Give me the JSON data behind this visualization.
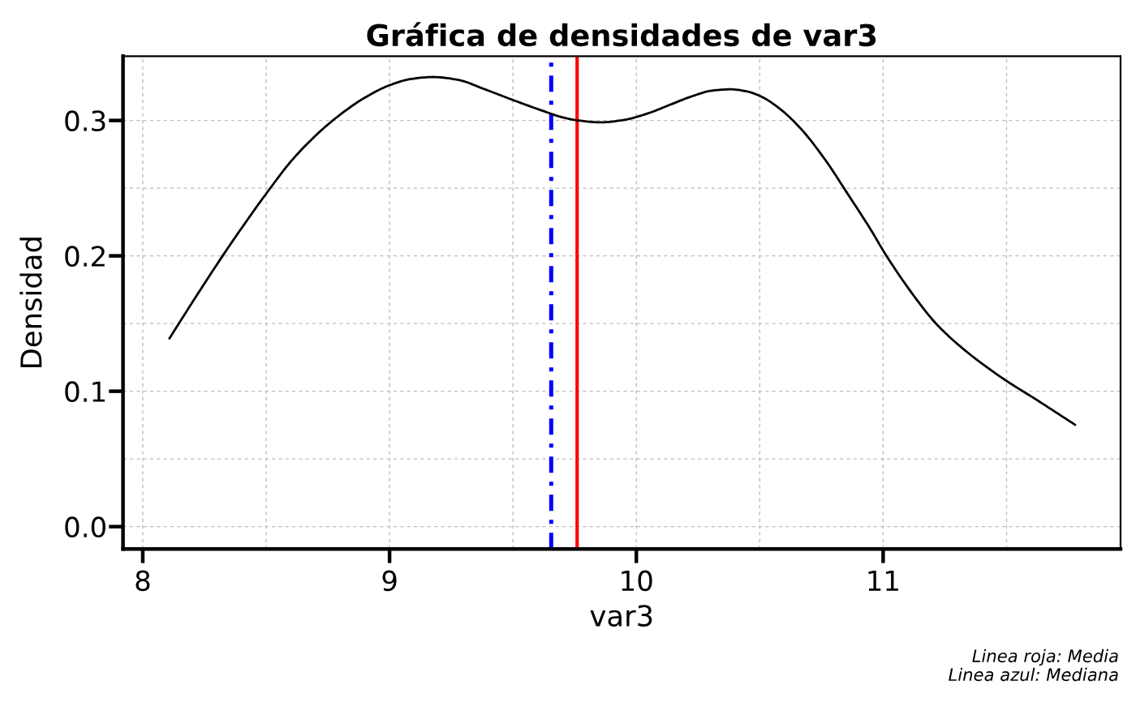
{
  "chart_data": {
    "type": "line",
    "title": "Gráfica de densidades de var3",
    "xlabel": "var3",
    "ylabel": "Densidad",
    "x": [
      8.108,
      8.216,
      8.328,
      8.412,
      8.5,
      8.609,
      8.738,
      8.85,
      8.892,
      9.001,
      9.089,
      9.177,
      9.275,
      9.385,
      9.5,
      9.615,
      9.703,
      9.757,
      9.856,
      9.943,
      10.053,
      10.108,
      10.228,
      10.305,
      10.382,
      10.447,
      10.502,
      10.579,
      10.666,
      10.765,
      10.852,
      10.951,
      11.01,
      11.137,
      11.214,
      11.291,
      11.378,
      11.501,
      11.619,
      11.778
    ],
    "series": [
      {
        "color": "#000000",
        "values": [
          0.139,
          0.17,
          0.2012,
          0.2235,
          0.2459,
          0.2716,
          0.2951,
          0.311,
          0.316,
          0.3261,
          0.3307,
          0.3321,
          0.3301,
          0.3231,
          0.3151,
          0.3075,
          0.3022,
          0.3002,
          0.2986,
          0.3002,
          0.3056,
          0.3095,
          0.318,
          0.322,
          0.323,
          0.3215,
          0.318,
          0.309,
          0.294,
          0.271,
          0.247,
          0.219,
          0.201,
          0.1674,
          0.15,
          0.1365,
          0.1235,
          0.1075,
          0.094,
          0.0752
        ]
      }
    ],
    "xlim": [
      7.92,
      11.962
    ],
    "ylim": [
      -0.0165,
      0.3475
    ],
    "xticks": [
      8,
      9,
      10,
      11
    ],
    "yticks": [
      {
        "value": 0,
        "label": "0.0"
      },
      0.1,
      0.2,
      0.3
    ],
    "grid": true,
    "ref_lines": [
      {
        "axis": "x",
        "value": 9.76,
        "color": "#ff0000",
        "line_style": "solid"
      },
      {
        "axis": "x",
        "value": 9.655,
        "color": "#0000ff",
        "line_style": "dashdot"
      }
    ],
    "annotations": [
      "Linea roja: Media",
      "Linea azul: Mediana"
    ]
  }
}
